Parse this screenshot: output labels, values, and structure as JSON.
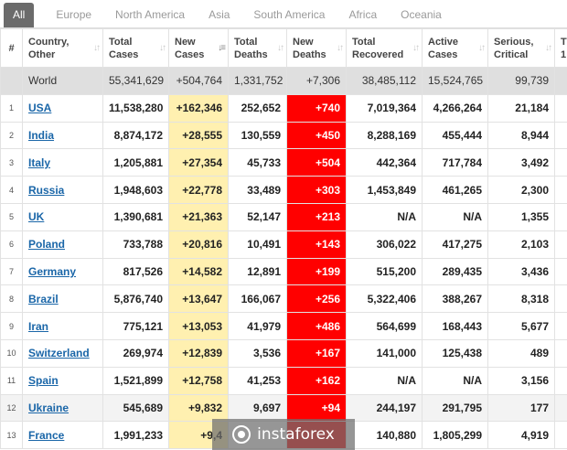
{
  "tabs": [
    "All",
    "Europe",
    "North America",
    "Asia",
    "South America",
    "Africa",
    "Oceania"
  ],
  "headers": {
    "idx": "#",
    "country": [
      "Country,",
      "Other"
    ],
    "total_cases": [
      "Total",
      "Cases"
    ],
    "new_cases": [
      "New",
      "Cases"
    ],
    "total_deaths": [
      "Total",
      "Deaths"
    ],
    "new_deaths": [
      "New",
      "Deaths"
    ],
    "total_recovered": [
      "Total",
      "Recovered"
    ],
    "active_cases": [
      "Active",
      "Cases"
    ],
    "serious_critical": [
      "Serious,",
      "Critical"
    ],
    "partial": [
      "T",
      "1"
    ]
  },
  "world": {
    "country": "World",
    "total_cases": "55,341,629",
    "new_cases": "+504,764",
    "total_deaths": "1,331,752",
    "new_deaths": "+7,306",
    "total_recovered": "38,485,112",
    "active_cases": "15,524,765",
    "serious_critical": "99,739"
  },
  "rows": [
    {
      "idx": "1",
      "country": "USA",
      "total_cases": "11,538,280",
      "new_cases": "+162,346",
      "total_deaths": "252,652",
      "new_deaths": "+740",
      "total_recovered": "7,019,364",
      "active_cases": "4,266,264",
      "serious_critical": "21,184"
    },
    {
      "idx": "2",
      "country": "India",
      "total_cases": "8,874,172",
      "new_cases": "+28,555",
      "total_deaths": "130,559",
      "new_deaths": "+450",
      "total_recovered": "8,288,169",
      "active_cases": "455,444",
      "serious_critical": "8,944"
    },
    {
      "idx": "3",
      "country": "Italy",
      "total_cases": "1,205,881",
      "new_cases": "+27,354",
      "total_deaths": "45,733",
      "new_deaths": "+504",
      "total_recovered": "442,364",
      "active_cases": "717,784",
      "serious_critical": "3,492"
    },
    {
      "idx": "4",
      "country": "Russia",
      "total_cases": "1,948,603",
      "new_cases": "+22,778",
      "total_deaths": "33,489",
      "new_deaths": "+303",
      "total_recovered": "1,453,849",
      "active_cases": "461,265",
      "serious_critical": "2,300"
    },
    {
      "idx": "5",
      "country": "UK",
      "total_cases": "1,390,681",
      "new_cases": "+21,363",
      "total_deaths": "52,147",
      "new_deaths": "+213",
      "total_recovered": "N/A",
      "active_cases": "N/A",
      "serious_critical": "1,355"
    },
    {
      "idx": "6",
      "country": "Poland",
      "total_cases": "733,788",
      "new_cases": "+20,816",
      "total_deaths": "10,491",
      "new_deaths": "+143",
      "total_recovered": "306,022",
      "active_cases": "417,275",
      "serious_critical": "2,103"
    },
    {
      "idx": "7",
      "country": "Germany",
      "total_cases": "817,526",
      "new_cases": "+14,582",
      "total_deaths": "12,891",
      "new_deaths": "+199",
      "total_recovered": "515,200",
      "active_cases": "289,435",
      "serious_critical": "3,436"
    },
    {
      "idx": "8",
      "country": "Brazil",
      "total_cases": "5,876,740",
      "new_cases": "+13,647",
      "total_deaths": "166,067",
      "new_deaths": "+256",
      "total_recovered": "5,322,406",
      "active_cases": "388,267",
      "serious_critical": "8,318"
    },
    {
      "idx": "9",
      "country": "Iran",
      "total_cases": "775,121",
      "new_cases": "+13,053",
      "total_deaths": "41,979",
      "new_deaths": "+486",
      "total_recovered": "564,699",
      "active_cases": "168,443",
      "serious_critical": "5,677"
    },
    {
      "idx": "10",
      "country": "Switzerland",
      "total_cases": "269,974",
      "new_cases": "+12,839",
      "total_deaths": "3,536",
      "new_deaths": "+167",
      "total_recovered": "141,000",
      "active_cases": "125,438",
      "serious_critical": "489"
    },
    {
      "idx": "11",
      "country": "Spain",
      "total_cases": "1,521,899",
      "new_cases": "+12,758",
      "total_deaths": "41,253",
      "new_deaths": "+162",
      "total_recovered": "N/A",
      "active_cases": "N/A",
      "serious_critical": "3,156"
    },
    {
      "idx": "12",
      "country": "Ukraine",
      "total_cases": "545,689",
      "new_cases": "+9,832",
      "total_deaths": "9,697",
      "new_deaths": "+94",
      "total_recovered": "244,197",
      "active_cases": "291,795",
      "serious_critical": "177"
    },
    {
      "idx": "13",
      "country": "France",
      "total_cases": "1,991,233",
      "new_cases": "+9,4",
      "total_deaths": "",
      "new_deaths": "",
      "total_recovered": "140,880",
      "active_cases": "1,805,299",
      "serious_critical": "4,919"
    }
  ],
  "watermark": "instaforex",
  "colors": {
    "new_cases_bg": "#fff0b0",
    "new_deaths_bg": "#ff0000",
    "link": "#1a66a8",
    "active_tab": "#6b6b6b",
    "world_row": "#dfdfdf"
  }
}
